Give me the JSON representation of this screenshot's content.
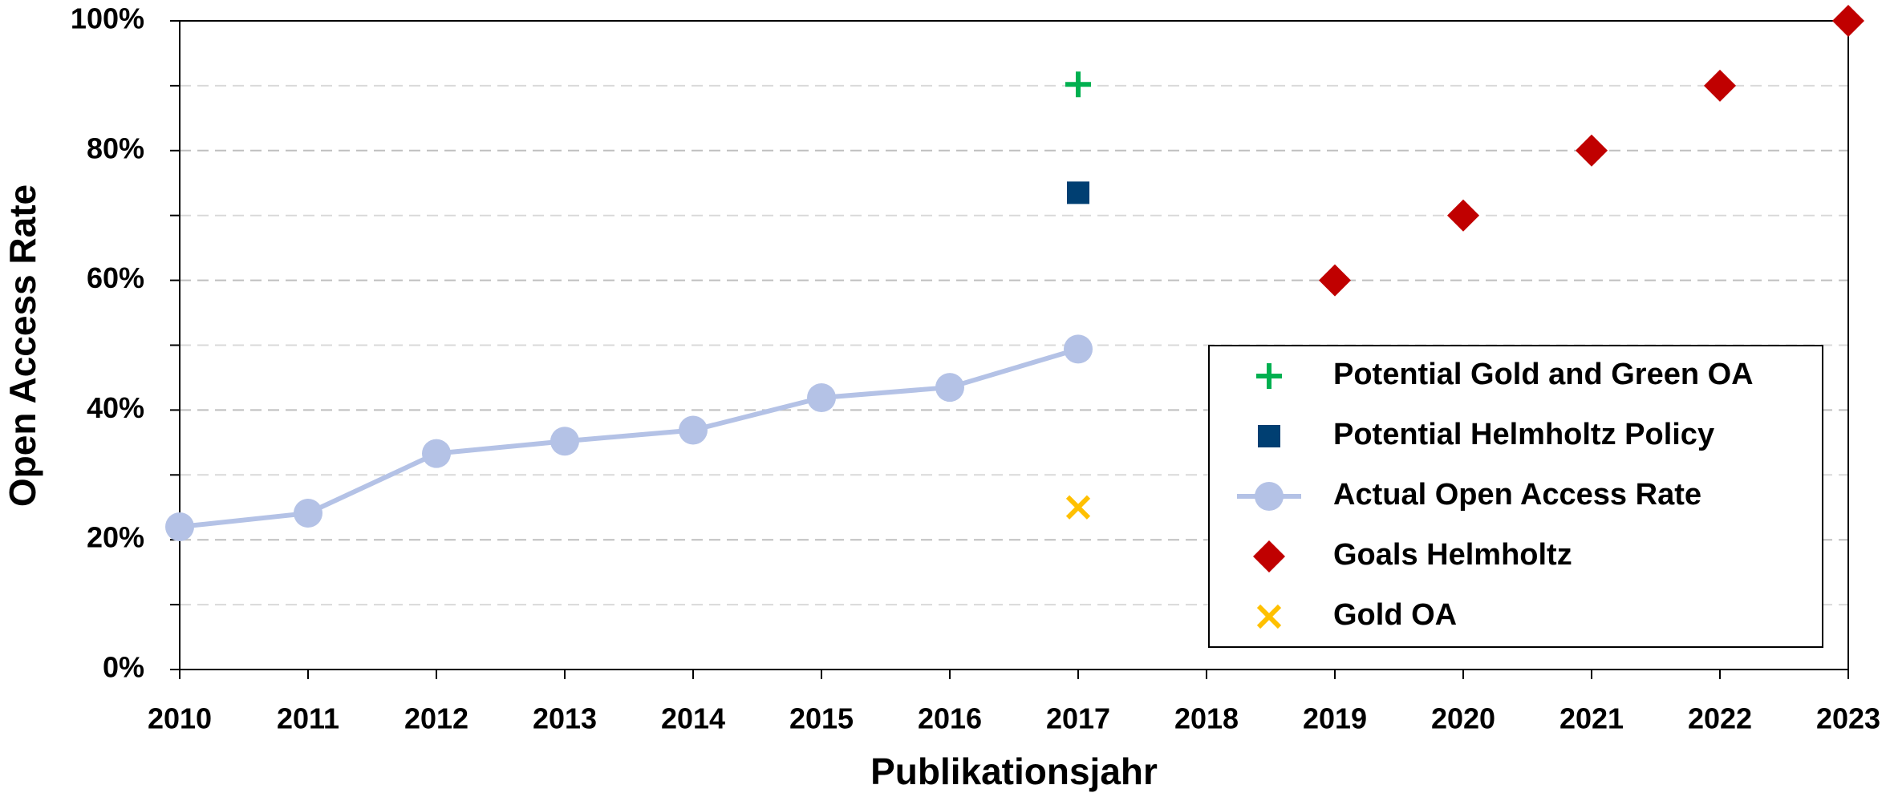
{
  "chart_data": {
    "type": "scatter",
    "xlabel": "Publikationsjahr",
    "ylabel": "Open Access Rate",
    "xlim": [
      2010,
      2023
    ],
    "xticks": [
      2010,
      2011,
      2012,
      2013,
      2014,
      2015,
      2016,
      2017,
      2018,
      2019,
      2020,
      2021,
      2022,
      2023
    ],
    "ylim": [
      0,
      100
    ],
    "yticks": [
      {
        "value": 0,
        "label": "0%"
      },
      {
        "value": 20,
        "label": "20%"
      },
      {
        "value": 40,
        "label": "40%"
      },
      {
        "value": 60,
        "label": "60%"
      },
      {
        "value": 80,
        "label": "80%"
      },
      {
        "value": 100,
        "label": "100%"
      }
    ],
    "minor_yticks": [
      10,
      30,
      50,
      70,
      90
    ],
    "grid": true,
    "legend": "lower right",
    "series": [
      {
        "name": "Potential Gold and Green OA",
        "color": "#00b050",
        "marker": "plus",
        "x": [
          2017
        ],
        "values": [
          90.2
        ]
      },
      {
        "name": "Potential Helmholtz Policy",
        "color": "#003f72",
        "marker": "square",
        "x": [
          2017
        ],
        "values": [
          73.5
        ]
      },
      {
        "name": "Actual Open Access Rate",
        "color": "#b4c2e6",
        "marker": "circle",
        "line": true,
        "x": [
          2010,
          2011,
          2012,
          2013,
          2014,
          2015,
          2016,
          2017
        ],
        "values": [
          22.0,
          24.1,
          33.3,
          35.2,
          36.9,
          41.9,
          43.5,
          49.4
        ]
      },
      {
        "name": "Goals Helmholtz",
        "color": "#c00000",
        "marker": "diamond",
        "x": [
          2019,
          2020,
          2021,
          2022,
          2023
        ],
        "values": [
          60,
          70,
          80,
          90,
          100
        ]
      },
      {
        "name": "Gold OA",
        "color": "#ffc000",
        "marker": "x",
        "x": [
          2017
        ],
        "values": [
          25
        ]
      }
    ]
  }
}
